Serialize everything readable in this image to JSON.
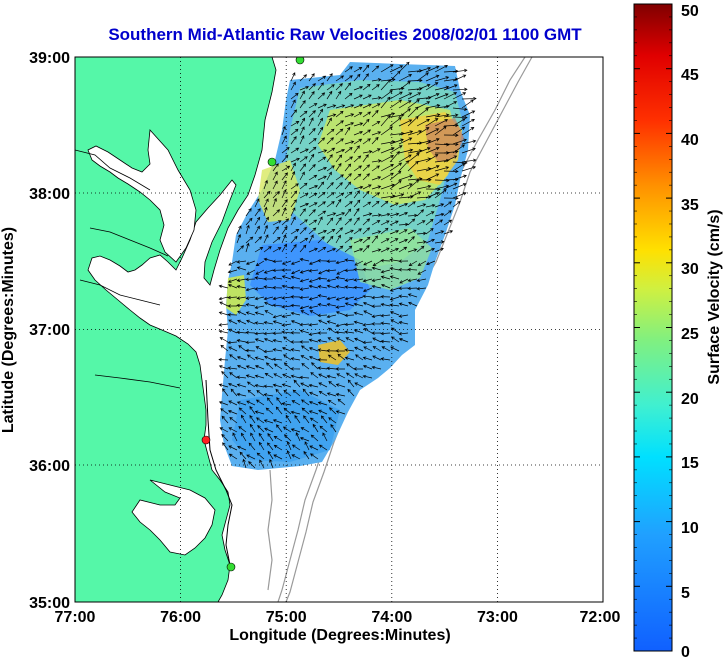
{
  "title": "Southern Mid-Atlantic Raw Velocities 2008/02/01 1100 GMT",
  "axes": {
    "xlabel": "Longitude (Degrees:Minutes)",
    "ylabel": "Latitude (Degrees:Minutes)",
    "x_ticks": [
      "77:00",
      "76:00",
      "75:00",
      "74:00",
      "73:00",
      "72:00"
    ],
    "y_ticks": [
      "35:00",
      "36:00",
      "37:00",
      "38:00",
      "39:00"
    ],
    "x_range": [
      -77,
      -72
    ],
    "y_range": [
      35,
      39
    ],
    "grid": "dotted"
  },
  "colorbar": {
    "label": "Surface Velocity (cm/s)",
    "ticks": [
      "0",
      "5",
      "10",
      "15",
      "20",
      "25",
      "30",
      "35",
      "40",
      "45",
      "50"
    ],
    "range": [
      0,
      50
    ],
    "colormap": "jet"
  },
  "colors": {
    "land": "#55f7a8",
    "coastline": "#000000",
    "bathymetry": "#9a9a9a",
    "station_red": "#ff2020",
    "station_green": "#33dd33",
    "title": "#0000cc"
  },
  "stations": [
    {
      "lon": -75.72,
      "lat": 36.18,
      "color": "red"
    },
    {
      "lon": -75.1,
      "lat": 38.02,
      "color": "green"
    },
    {
      "lon": -74.88,
      "lat": 38.99,
      "color": "green"
    },
    {
      "lon": -75.54,
      "lat": 35.25,
      "color": "green"
    }
  ]
}
